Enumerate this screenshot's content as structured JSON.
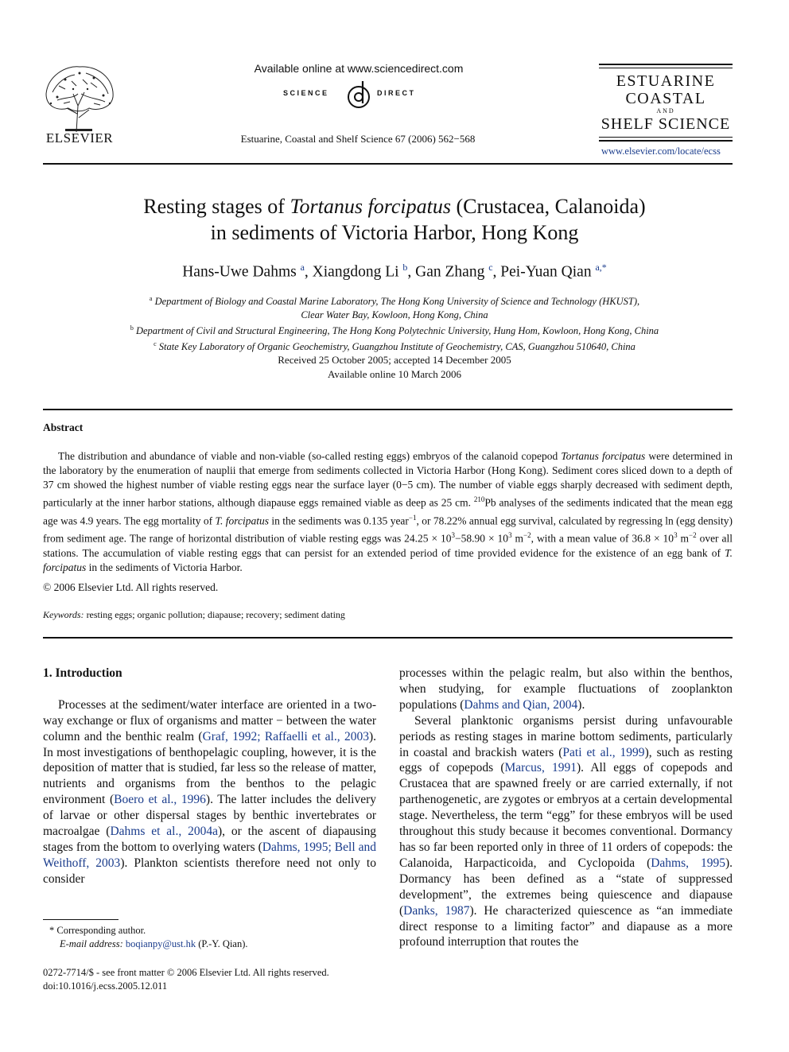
{
  "header": {
    "publisher": "ELSEVIER",
    "available_online": "Available online at www.sciencedirect.com",
    "sd_left": "SCIENCE",
    "sd_right": "DIRECT",
    "citation": "Estuarine, Coastal and Shelf Science 67 (2006) 562−568",
    "journal_line1": "ESTUARINE",
    "journal_line2": "COASTAL",
    "journal_line3": "AND",
    "journal_line4": "SHELF SCIENCE",
    "journal_url": "www.elsevier.com/locate/ecss"
  },
  "title": {
    "pre": "Resting stages of ",
    "species": "Tortanus forcipatus",
    "post": " (Crustacea, Calanoida)",
    "line2": "in sediments of Victoria Harbor, Hong Kong"
  },
  "authors": [
    {
      "name": "Hans-Uwe Dahms",
      "sup": "a"
    },
    {
      "name": "Xiangdong Li",
      "sup": "b"
    },
    {
      "name": "Gan Zhang",
      "sup": "c"
    },
    {
      "name": "Pei-Yuan Qian",
      "sup": "a,*"
    }
  ],
  "affiliations": {
    "a_line1": "Department of Biology and Coastal Marine Laboratory, The Hong Kong University of Science and Technology (HKUST),",
    "a_line2": "Clear Water Bay, Kowloon, Hong Kong, China",
    "b": "Department of Civil and Structural Engineering, The Hong Kong Polytechnic University, Hung Hom, Kowloon, Hong Kong, China",
    "c": "State Key Laboratory of Organic Geochemistry, Guangzhou Institute of Geochemistry, CAS, Guangzhou 510640, China"
  },
  "dates": {
    "received": "Received 25 October 2005; accepted 14 December 2005",
    "online": "Available online 10 March 2006"
  },
  "abstract": {
    "heading": "Abstract",
    "copyright": "© 2006 Elsevier Ltd. All rights reserved.",
    "keywords_label": "Keywords:",
    "keywords": "resting eggs; organic pollution; diapause; recovery; sediment dating"
  },
  "intro": {
    "heading": "1. Introduction"
  },
  "footnote": {
    "star": "* Corresponding author.",
    "email_label": "E-mail address:",
    "email": "boqianpy@ust.hk",
    "email_owner": "(P.-Y. Qian)."
  },
  "footer": {
    "issn": "0272-7714/$ - see front matter © 2006 Elsevier Ltd. All rights reserved.",
    "doi": "doi:10.1016/j.ecss.2005.12.011"
  }
}
